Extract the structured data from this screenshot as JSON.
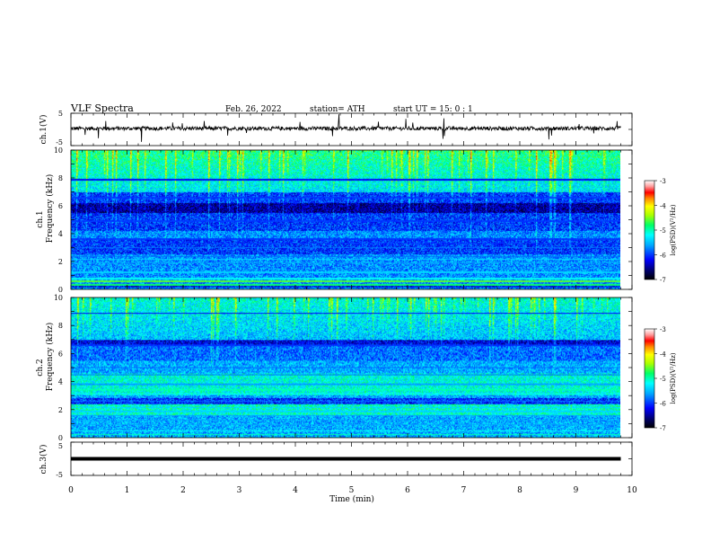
{
  "header": {
    "title": "VLF  Spectra",
    "date": "Feb. 26, 2022",
    "station": "station= ATH",
    "start": "start  UT  =    15: 0   : 1"
  },
  "chart_data": [
    {
      "type": "line",
      "panel": "ch1-waveform",
      "ylabel": "ch.1(V)",
      "ylim": [
        -5,
        5
      ],
      "yticks": [
        "5",
        "-5"
      ],
      "xlim": [
        0,
        10
      ],
      "trace_level": 0.3,
      "color": "#000000"
    },
    {
      "type": "heatmap",
      "panel": "ch1-spectrogram",
      "ylabel_channel": "ch.1",
      "ylabel": "Frequency  (kHz)",
      "ylim": [
        0,
        10
      ],
      "yticks": [
        "0",
        "2",
        "4",
        "6",
        "8",
        "10"
      ],
      "xlim": [
        0,
        10
      ],
      "colorbar": {
        "label": "log(PSD)(V²/Hz)",
        "range": [
          -7,
          -3
        ],
        "ticks": [
          "-3",
          "-4",
          "-5",
          "-6",
          "-7"
        ]
      }
    },
    {
      "type": "heatmap",
      "panel": "ch2-spectrogram",
      "ylabel_channel": "ch.2",
      "ylabel": "Frequency  (kHz)",
      "ylim": [
        0,
        10
      ],
      "yticks": [
        "0",
        "2",
        "4",
        "6",
        "8",
        "10"
      ],
      "xlim": [
        0,
        10
      ],
      "colorbar": {
        "label": "log(PSD)(V²/Hz)",
        "range": [
          -7,
          -3
        ],
        "ticks": [
          "-3",
          "-4",
          "-5",
          "-6",
          "-7"
        ]
      }
    },
    {
      "type": "line",
      "panel": "ch3-waveform",
      "ylabel": "ch.3(V)",
      "ylim": [
        -5,
        5
      ],
      "yticks": [
        "5",
        "-5"
      ],
      "xlim": [
        0,
        10
      ],
      "trace_level": 0,
      "color": "#000000"
    }
  ],
  "xaxis": {
    "label": "Time  (min)",
    "ticks": [
      "0",
      "1",
      "2",
      "3",
      "4",
      "5",
      "6",
      "7",
      "8",
      "9",
      "10"
    ],
    "data_end": 9.8
  }
}
